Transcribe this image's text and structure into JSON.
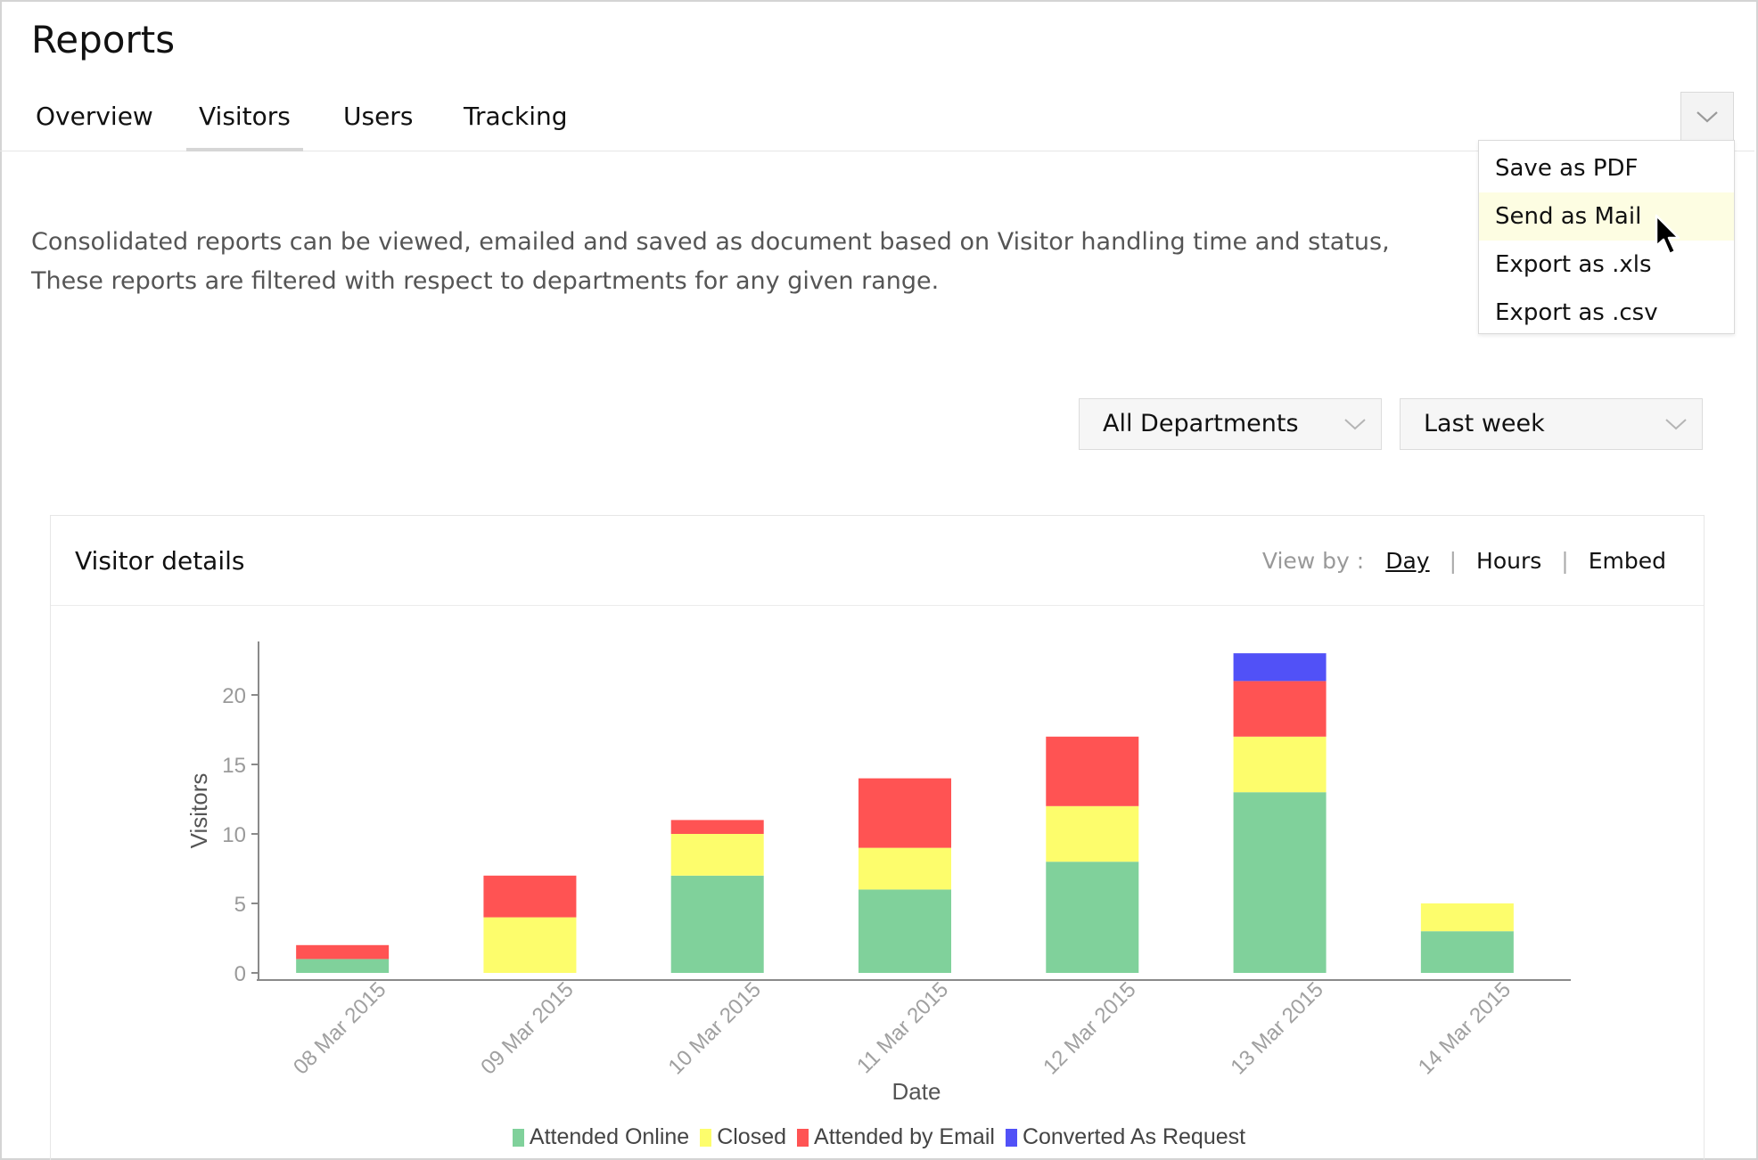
{
  "page": {
    "title": "Reports"
  },
  "tabs": [
    {
      "label": "Overview",
      "active": false
    },
    {
      "label": "Visitors",
      "active": true
    },
    {
      "label": "Users",
      "active": false
    },
    {
      "label": "Tracking",
      "active": false
    }
  ],
  "actions_menu": {
    "toggle_icon": "chevron-down-icon",
    "items": [
      {
        "label": "Save as PDF"
      },
      {
        "label": "Send as Mail",
        "hovered": true
      },
      {
        "label": "Export as .xls"
      },
      {
        "label": "Export as .csv"
      }
    ]
  },
  "description": {
    "line1": "Consolidated reports can be viewed, emailed and saved as document based on Visitor handling time and status,",
    "line2": "These reports are filtered with respect to departments for any given range."
  },
  "filters": {
    "department": "All Departments",
    "range": "Last week"
  },
  "panel": {
    "title": "Visitor details",
    "view_by_label": "View by :",
    "view_by_options": [
      {
        "label": "Day",
        "active": true
      },
      {
        "label": "Hours",
        "active": false
      },
      {
        "label": "Embed",
        "active": false
      }
    ]
  },
  "colors": {
    "attended_online": "#80d19b",
    "closed": "#fdfd6c",
    "attended_by_email": "#ff5353",
    "converted_as_request": "#5151f7"
  },
  "chart_data": {
    "type": "bar",
    "stacked": true,
    "xlabel": "Date",
    "ylabel": "Visitors",
    "ylim": [
      0,
      24
    ],
    "yticks": [
      0,
      5,
      10,
      15,
      20
    ],
    "categories": [
      "08 Mar 2015",
      "09 Mar 2015",
      "10 Mar 2015",
      "11 Mar 2015",
      "12 Mar 2015",
      "13 Mar 2015",
      "14 Mar 2015"
    ],
    "series": [
      {
        "name": "Attended Online",
        "color": "#80d19b",
        "values": [
          1,
          0,
          7,
          6,
          8,
          13,
          3
        ]
      },
      {
        "name": "Closed",
        "color": "#fdfd6c",
        "values": [
          0,
          4,
          3,
          3,
          4,
          4,
          2
        ]
      },
      {
        "name": "Attended by Email",
        "color": "#ff5353",
        "values": [
          1,
          3,
          1,
          5,
          5,
          4,
          0
        ]
      },
      {
        "name": "Converted As Request",
        "color": "#5151f7",
        "values": [
          0,
          0,
          0,
          0,
          0,
          2,
          0
        ]
      }
    ],
    "grid": false,
    "legend": "bottom"
  }
}
